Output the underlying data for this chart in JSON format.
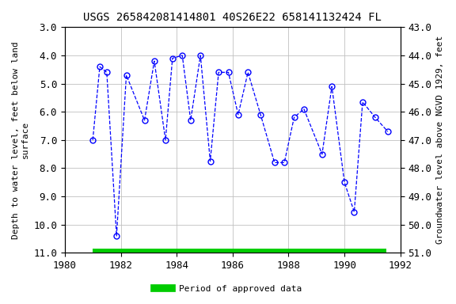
{
  "title": "USGS 265842081414801 40S26E22 658141132424 FL",
  "ylabel_left": "Depth to water level, feet below land\nsurface",
  "ylabel_right": "Groundwater level above NGVD 1929, feet",
  "ylim_left": [
    3.0,
    11.0
  ],
  "ylim_right": [
    43.0,
    51.0
  ],
  "xlim": [
    1980,
    1992
  ],
  "yticks_left": [
    3.0,
    4.0,
    5.0,
    6.0,
    7.0,
    8.0,
    9.0,
    10.0,
    11.0
  ],
  "yticks_right": [
    43.0,
    44.0,
    45.0,
    46.0,
    47.0,
    48.0,
    49.0,
    50.0,
    51.0
  ],
  "xticks": [
    1980,
    1982,
    1984,
    1986,
    1988,
    1990,
    1992
  ],
  "x_data": [
    1981.0,
    1981.25,
    1981.5,
    1981.85,
    1982.2,
    1982.85,
    1983.2,
    1983.6,
    1983.85,
    1984.2,
    1984.5,
    1984.85,
    1985.2,
    1985.5,
    1985.85,
    1986.2,
    1986.55,
    1987.0,
    1987.5,
    1987.85,
    1988.2,
    1988.55,
    1989.2,
    1989.55,
    1990.0,
    1990.35,
    1990.65,
    1991.1,
    1991.55
  ],
  "y_data": [
    7.0,
    4.4,
    4.6,
    10.4,
    4.7,
    6.3,
    4.2,
    7.0,
    4.1,
    4.0,
    6.3,
    4.0,
    7.75,
    4.6,
    4.6,
    6.1,
    4.6,
    6.1,
    7.8,
    7.8,
    6.2,
    5.9,
    7.5,
    5.1,
    8.5,
    9.55,
    5.65,
    6.2,
    6.7
  ],
  "line_color": "#0000FF",
  "marker_color": "#0000FF",
  "bar_color": "#00CC00",
  "bar_xmin": 1981.0,
  "bar_xmax": 1991.5,
  "legend_label": "Period of approved data",
  "background_color": "#ffffff",
  "grid_color": "#c0c0c0",
  "title_fontsize": 10,
  "label_fontsize": 8,
  "tick_fontsize": 9
}
